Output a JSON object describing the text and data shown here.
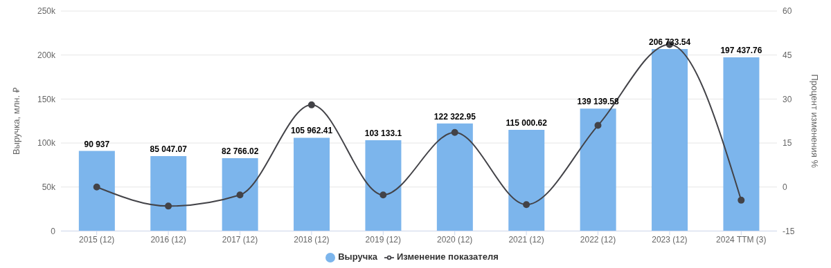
{
  "chart_data": {
    "type": "bar",
    "categories": [
      "2015 (12)",
      "2016 (12)",
      "2017 (12)",
      "2018 (12)",
      "2019 (12)",
      "2020 (12)",
      "2021 (12)",
      "2022 (12)",
      "2023 (12)",
      "2024 TTM (3)"
    ],
    "series": [
      {
        "name": "Выручка",
        "color": "#7cb5ec",
        "values": [
          90937,
          85047.07,
          82766.02,
          105962.41,
          103133.1,
          122322.95,
          115000.62,
          139139.58,
          206733.54,
          197437.76
        ],
        "value_labels": [
          "90 937",
          "85 047.07",
          "82 766.02",
          "105 962.41",
          "103 133.1",
          "122 322.95",
          "115 000.62",
          "139 139.58",
          "206 733.54",
          "197 437.76"
        ]
      },
      {
        "name": "Изменение показателя",
        "type": "line",
        "axis": "y2",
        "color": "#434348",
        "values": [
          0,
          -6.5,
          -2.7,
          28,
          -2.7,
          18.6,
          -6,
          21,
          48.6,
          -4.5
        ]
      }
    ],
    "ylabel": "Выручка, млн. ₽",
    "y2label": "Процент изменения %",
    "ylim": [
      0,
      250000
    ],
    "yticks": [
      0,
      {
        "value": 50000,
        "label": "50k"
      },
      {
        "value": 100000,
        "label": "100k"
      },
      {
        "value": 150000,
        "label": "150k"
      },
      {
        "value": 200000,
        "label": "200k"
      },
      {
        "value": 250000,
        "label": "250k"
      }
    ],
    "y2lim": [
      -15,
      60
    ],
    "y2ticks": [
      -15,
      0,
      15,
      30,
      45,
      60
    ],
    "grid": "y",
    "legend": "bottom",
    "marker": "circle",
    "line_style": "solid"
  }
}
